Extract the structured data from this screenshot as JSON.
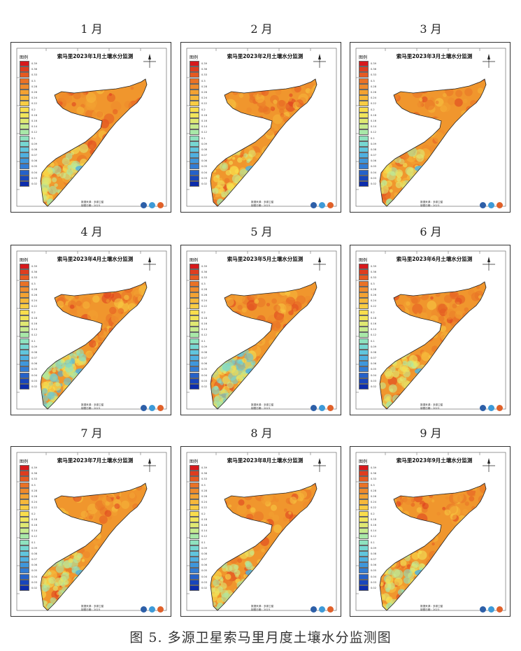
{
  "caption": "图 5. 多源卫星索马里月度土壤水分监测图",
  "legend_title": "图例",
  "legend_colors": [
    "#d7191c",
    "#de3d1f",
    "#e55a22",
    "#ea7226",
    "#ef8a2c",
    "#f3a232",
    "#f6b83a",
    "#f8cc43",
    "#f9dd4c",
    "#f0e45a",
    "#dfe872",
    "#c6ea8e",
    "#a8e8a8",
    "#8ee2bf",
    "#76d7d2",
    "#60c5dd",
    "#4fb0e0",
    "#3f97dc",
    "#327cd4",
    "#2561c9",
    "#1946bb",
    "#0d2dac"
  ],
  "legend_values": [
    "0.39",
    "0.36",
    "0.33",
    "0.3",
    "0.28",
    "0.26",
    "0.24",
    "0.22",
    "0.2",
    "0.18",
    "0.16",
    "0.14",
    "0.12",
    "0.1",
    "0.09",
    "0.08",
    "0.07",
    "0.06",
    "0.05",
    "0.04",
    "0.03",
    "0.02"
  ],
  "footer_lines": [
    "数据来源：多源卫星",
    "制图日期：2023"
  ],
  "coastline_color": "#222222",
  "months": [
    {
      "label": "1 月",
      "title": "索马里2023年1月土壤水分监测",
      "wetness": 0.25
    },
    {
      "label": "2 月",
      "title": "索马里2023年2月土壤水分监测",
      "wetness": 0.22
    },
    {
      "label": "3 月",
      "title": "索马里2023年3月土壤水分监测",
      "wetness": 0.2
    },
    {
      "label": "4 月",
      "title": "索马里2023年4月土壤水分监测",
      "wetness": 0.7
    },
    {
      "label": "5 月",
      "title": "索马里2023年5月土壤水分监测",
      "wetness": 0.6
    },
    {
      "label": "6 月",
      "title": "索马里2023年6月土壤水分监测",
      "wetness": 0.15
    },
    {
      "label": "7 月",
      "title": "索马里2023年7月土壤水分监测",
      "wetness": 0.35
    },
    {
      "label": "8 月",
      "title": "索马里2023年8月土壤水分监测",
      "wetness": 0.2
    },
    {
      "label": "9 月",
      "title": "索马里2023年9月土壤水分监测",
      "wetness": 0.3
    }
  ]
}
